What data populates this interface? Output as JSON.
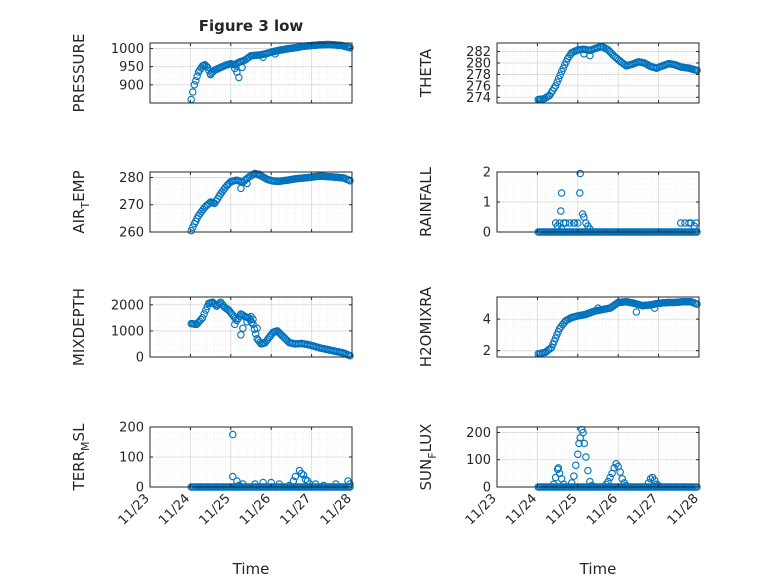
{
  "title": "Figure 3 low",
  "colors": {
    "marker": "#0072bd",
    "axis": "#262626",
    "grid_minor": "#e6e6e6",
    "grid_major": "#d9d9d9",
    "background": "#ffffff"
  },
  "time_ticks": [
    "11/23",
    "11/24",
    "11/25",
    "11/26",
    "11/27",
    "11/28"
  ],
  "chart_data": [
    {
      "type": "scatter",
      "id": "pressure",
      "ylabel_main": "PRESSURE",
      "ylabel_sub": "",
      "ylabel_tail": "",
      "xlabel": "",
      "xlim": [
        0,
        5
      ],
      "ylim": [
        850,
        1015
      ],
      "yticks": [
        900,
        950,
        1000
      ],
      "ytick_labels": [
        "900",
        "950",
        "1000"
      ],
      "grid": true,
      "anchors": [
        [
          1.02,
          860
        ],
        [
          1.1,
          900
        ],
        [
          1.2,
          935
        ],
        [
          1.3,
          952
        ],
        [
          1.36,
          955
        ],
        [
          1.42,
          948
        ],
        [
          1.5,
          930
        ],
        [
          1.6,
          940
        ],
        [
          1.75,
          948
        ],
        [
          1.9,
          955
        ],
        [
          2.0,
          958
        ],
        [
          2.1,
          955
        ],
        [
          2.2,
          962
        ],
        [
          2.35,
          968
        ],
        [
          2.5,
          980
        ],
        [
          2.7,
          982
        ],
        [
          2.85,
          985
        ],
        [
          3.0,
          990
        ],
        [
          3.2,
          995
        ],
        [
          3.4,
          999
        ],
        [
          3.6,
          1002
        ],
        [
          3.8,
          1006
        ],
        [
          4.0,
          1008
        ],
        [
          4.2,
          1010
        ],
        [
          4.4,
          1011
        ],
        [
          4.55,
          1010
        ],
        [
          4.75,
          1008
        ],
        [
          4.95,
          1002
        ]
      ],
      "extra": [
        [
          2.2,
          920
        ],
        [
          2.15,
          935
        ],
        [
          2.1,
          945
        ],
        [
          2.28,
          948
        ],
        [
          1.5,
          928
        ],
        [
          2.8,
          976
        ],
        [
          3.1,
          985
        ]
      ]
    },
    {
      "type": "scatter",
      "id": "theta",
      "ylabel_main": "THETA",
      "ylabel_sub": "",
      "ylabel_tail": "",
      "xlabel": "",
      "xlim": [
        0,
        5
      ],
      "ylim": [
        273,
        283.5
      ],
      "yticks": [
        274,
        276,
        278,
        280,
        282
      ],
      "ytick_labels": [
        "274",
        "276",
        "278",
        "280",
        "282"
      ],
      "grid": true,
      "anchors": [
        [
          1.02,
          273.6
        ],
        [
          1.15,
          273.7
        ],
        [
          1.3,
          274.3
        ],
        [
          1.45,
          276
        ],
        [
          1.6,
          278.5
        ],
        [
          1.75,
          280.8
        ],
        [
          1.85,
          281.8
        ],
        [
          2.0,
          282.3
        ],
        [
          2.15,
          282.4
        ],
        [
          2.3,
          282.2
        ],
        [
          2.45,
          282.6
        ],
        [
          2.6,
          282.9
        ],
        [
          2.75,
          282.3
        ],
        [
          2.9,
          281.2
        ],
        [
          3.05,
          280.3
        ],
        [
          3.2,
          279.5
        ],
        [
          3.35,
          279.8
        ],
        [
          3.5,
          280.2
        ],
        [
          3.65,
          280.0
        ],
        [
          3.8,
          279.4
        ],
        [
          3.95,
          279.1
        ],
        [
          4.1,
          279.5
        ],
        [
          4.25,
          279.9
        ],
        [
          4.4,
          279.7
        ],
        [
          4.55,
          279.3
        ],
        [
          4.75,
          279.1
        ],
        [
          4.95,
          278.7
        ]
      ],
      "extra": [
        [
          2.3,
          281.3
        ],
        [
          2.15,
          281.6
        ]
      ]
    },
    {
      "type": "scatter",
      "id": "air-temp",
      "ylabel_main": "AIR",
      "ylabel_sub": "T",
      "ylabel_tail": "EMP",
      "xlabel": "",
      "xlim": [
        0,
        5
      ],
      "ylim": [
        260,
        282
      ],
      "yticks": [
        260,
        270,
        280
      ],
      "ytick_labels": [
        "260",
        "270",
        "280"
      ],
      "grid": true,
      "anchors": [
        [
          1.02,
          260.5
        ],
        [
          1.1,
          263
        ],
        [
          1.2,
          266
        ],
        [
          1.35,
          269
        ],
        [
          1.5,
          271
        ],
        [
          1.6,
          270.5
        ],
        [
          1.75,
          274
        ],
        [
          1.9,
          277
        ],
        [
          2.0,
          278.5
        ],
        [
          2.15,
          279
        ],
        [
          2.3,
          278.3
        ],
        [
          2.45,
          280.2
        ],
        [
          2.6,
          281.5
        ],
        [
          2.75,
          280.6
        ],
        [
          2.9,
          279.3
        ],
        [
          3.05,
          278.7
        ],
        [
          3.2,
          278.6
        ],
        [
          3.4,
          279
        ],
        [
          3.6,
          279.5
        ],
        [
          3.8,
          279.8
        ],
        [
          4.0,
          280.1
        ],
        [
          4.2,
          280.5
        ],
        [
          4.4,
          280.3
        ],
        [
          4.6,
          280.1
        ],
        [
          4.8,
          279.8
        ],
        [
          4.95,
          278.8
        ]
      ],
      "extra": [
        [
          2.25,
          276
        ],
        [
          2.4,
          277.8
        ],
        [
          2.7,
          281.2
        ]
      ]
    },
    {
      "type": "scatter",
      "id": "rainfall",
      "ylabel_main": "RAINFALL",
      "ylabel_sub": "",
      "ylabel_tail": "",
      "xlabel": "",
      "xlim": [
        0,
        5
      ],
      "ylim": [
        0,
        2
      ],
      "yticks": [
        0,
        1,
        2
      ],
      "ytick_labels": [
        "0",
        "1",
        "2"
      ],
      "grid": true,
      "anchors": [
        [
          1.02,
          0
        ],
        [
          4.95,
          0
        ]
      ],
      "extra": [
        [
          1.45,
          0.3
        ],
        [
          1.55,
          0.3
        ],
        [
          1.58,
          0.7
        ],
        [
          1.6,
          1.3
        ],
        [
          1.65,
          0.3
        ],
        [
          1.7,
          0.3
        ],
        [
          1.8,
          0.3
        ],
        [
          1.9,
          0.3
        ],
        [
          1.92,
          0.3
        ],
        [
          2.05,
          1.3
        ],
        [
          2.06,
          1.95
        ],
        [
          2.12,
          0.6
        ],
        [
          2.15,
          0.5
        ],
        [
          2.2,
          0.3
        ],
        [
          2.25,
          0.2
        ],
        [
          2.3,
          0.1
        ],
        [
          1.5,
          0.2
        ],
        [
          1.6,
          0.1
        ],
        [
          2.0,
          0.3
        ],
        [
          4.55,
          0.3
        ],
        [
          4.65,
          0.3
        ],
        [
          4.75,
          0.3
        ],
        [
          4.8,
          0.3
        ],
        [
          4.88,
          0.2
        ],
        [
          4.93,
          0.3
        ]
      ]
    },
    {
      "type": "scatter",
      "id": "mixdepth",
      "ylabel_main": "MIXDEPTH",
      "ylabel_sub": "",
      "ylabel_tail": "",
      "xlabel": "",
      "xlim": [
        0,
        5
      ],
      "ylim": [
        0,
        2300
      ],
      "yticks": [
        0,
        1000,
        2000
      ],
      "ytick_labels": [
        "0",
        "1000",
        "2000"
      ],
      "grid": true,
      "anchors": [
        [
          1.02,
          1280
        ],
        [
          1.15,
          1250
        ],
        [
          1.3,
          1500
        ],
        [
          1.38,
          1800
        ],
        [
          1.45,
          2050
        ],
        [
          1.55,
          2100
        ],
        [
          1.65,
          1950
        ],
        [
          1.75,
          2100
        ],
        [
          1.85,
          1900
        ],
        [
          1.95,
          1800
        ],
        [
          2.05,
          1600
        ],
        [
          2.15,
          1400
        ],
        [
          2.25,
          1650
        ],
        [
          2.35,
          1550
        ],
        [
          2.45,
          1500
        ],
        [
          2.55,
          1250
        ],
        [
          2.65,
          700
        ],
        [
          2.75,
          500
        ],
        [
          2.85,
          550
        ],
        [
          2.95,
          750
        ],
        [
          3.05,
          950
        ],
        [
          3.15,
          1000
        ],
        [
          3.25,
          850
        ],
        [
          3.35,
          700
        ],
        [
          3.45,
          550
        ],
        [
          3.6,
          500
        ],
        [
          3.75,
          520
        ],
        [
          3.9,
          480
        ],
        [
          4.05,
          420
        ],
        [
          4.2,
          350
        ],
        [
          4.35,
          300
        ],
        [
          4.5,
          250
        ],
        [
          4.65,
          200
        ],
        [
          4.8,
          150
        ],
        [
          4.95,
          50
        ]
      ],
      "extra": [
        [
          2.25,
          850
        ],
        [
          2.3,
          1100
        ],
        [
          2.4,
          1350
        ],
        [
          2.5,
          1550
        ],
        [
          2.55,
          1450
        ],
        [
          2.1,
          1250
        ],
        [
          2.65,
          1100
        ]
      ]
    },
    {
      "type": "scatter",
      "id": "h2omixra",
      "ylabel_main": "H2OMIXRA",
      "ylabel_sub": "",
      "ylabel_tail": "",
      "xlabel": "",
      "xlim": [
        0,
        5
      ],
      "ylim": [
        1.6,
        5.4
      ],
      "yticks": [
        2,
        4
      ],
      "ytick_labels": [
        "2",
        "4"
      ],
      "grid": true,
      "anchors": [
        [
          1.02,
          1.8
        ],
        [
          1.2,
          1.9
        ],
        [
          1.35,
          2.2
        ],
        [
          1.45,
          2.8
        ],
        [
          1.55,
          3.4
        ],
        [
          1.7,
          3.9
        ],
        [
          1.85,
          4.1
        ],
        [
          2.0,
          4.2
        ],
        [
          2.2,
          4.3
        ],
        [
          2.4,
          4.5
        ],
        [
          2.6,
          4.6
        ],
        [
          2.8,
          4.7
        ],
        [
          3.0,
          5.05
        ],
        [
          3.2,
          5.1
        ],
        [
          3.4,
          5.0
        ],
        [
          3.6,
          4.85
        ],
        [
          3.8,
          4.9
        ],
        [
          4.0,
          5.0
        ],
        [
          4.2,
          5.05
        ],
        [
          4.4,
          5.05
        ],
        [
          4.6,
          5.1
        ],
        [
          4.8,
          5.1
        ],
        [
          4.95,
          4.95
        ]
      ],
      "extra": [
        [
          2.5,
          4.7
        ],
        [
          3.45,
          4.45
        ],
        [
          3.9,
          4.7
        ]
      ]
    },
    {
      "type": "scatter",
      "id": "terr-msl",
      "ylabel_main": "TERR",
      "ylabel_sub": "M",
      "ylabel_tail": "SL",
      "xlabel": "Time",
      "xlim": [
        0,
        5
      ],
      "ylim": [
        0,
        200
      ],
      "yticks": [
        0,
        100,
        200
      ],
      "ytick_labels": [
        "0",
        "100",
        "200"
      ],
      "grid": true,
      "anchors": [
        [
          1.02,
          0
        ],
        [
          4.95,
          0
        ]
      ],
      "extra": [
        [
          2.05,
          175
        ],
        [
          2.05,
          35
        ],
        [
          2.15,
          20
        ],
        [
          2.3,
          10
        ],
        [
          2.6,
          10
        ],
        [
          2.8,
          15
        ],
        [
          3.0,
          15
        ],
        [
          3.2,
          10
        ],
        [
          3.45,
          5
        ],
        [
          3.6,
          35
        ],
        [
          3.7,
          55
        ],
        [
          3.75,
          45
        ],
        [
          3.8,
          40
        ],
        [
          3.85,
          25
        ],
        [
          3.9,
          20
        ],
        [
          3.95,
          10
        ],
        [
          4.1,
          10
        ],
        [
          4.3,
          5
        ],
        [
          4.6,
          10
        ],
        [
          4.9,
          20
        ],
        [
          4.95,
          10
        ],
        [
          2.2,
          5
        ],
        [
          3.55,
          20
        ]
      ]
    },
    {
      "type": "scatter",
      "id": "sun-flux",
      "ylabel_main": "SUN",
      "ylabel_sub": "F",
      "ylabel_tail": "LUX",
      "xlabel": "Time",
      "xlim": [
        0,
        5
      ],
      "ylim": [
        0,
        220
      ],
      "yticks": [
        0,
        100,
        200
      ],
      "ytick_labels": [
        "0",
        "100",
        "200"
      ],
      "grid": true,
      "anchors": [
        [
          1.02,
          0
        ],
        [
          4.95,
          0
        ]
      ],
      "extra": [
        [
          1.4,
          10
        ],
        [
          1.45,
          35
        ],
        [
          1.5,
          65
        ],
        [
          1.52,
          70
        ],
        [
          1.55,
          50
        ],
        [
          1.6,
          30
        ],
        [
          1.65,
          10
        ],
        [
          1.85,
          15
        ],
        [
          1.9,
          40
        ],
        [
          1.95,
          80
        ],
        [
          2.0,
          120
        ],
        [
          2.03,
          160
        ],
        [
          2.06,
          180
        ],
        [
          2.1,
          210
        ],
        [
          2.13,
          200
        ],
        [
          2.16,
          160
        ],
        [
          2.2,
          110
        ],
        [
          2.25,
          60
        ],
        [
          2.3,
          20
        ],
        [
          2.35,
          5
        ],
        [
          2.7,
          10
        ],
        [
          2.75,
          20
        ],
        [
          2.8,
          35
        ],
        [
          2.85,
          50
        ],
        [
          2.9,
          70
        ],
        [
          2.95,
          85
        ],
        [
          3.0,
          75
        ],
        [
          3.05,
          55
        ],
        [
          3.1,
          30
        ],
        [
          3.15,
          15
        ],
        [
          3.2,
          5
        ],
        [
          3.75,
          15
        ],
        [
          3.8,
          30
        ],
        [
          3.85,
          35
        ],
        [
          3.9,
          25
        ],
        [
          3.95,
          10
        ],
        [
          4.0,
          5
        ]
      ]
    }
  ]
}
